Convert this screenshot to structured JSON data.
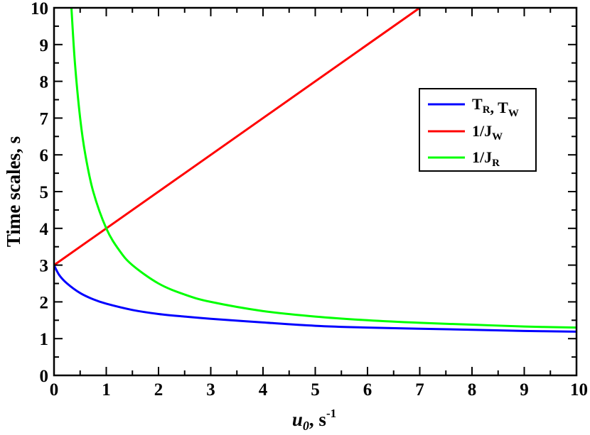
{
  "chart_data": {
    "type": "line",
    "xlabel": {
      "main": "u",
      "sub": "0",
      "suffix": ", s",
      "sup": "-1"
    },
    "ylabel": "Time scales, s",
    "xlim": [
      0,
      10
    ],
    "ylim": [
      0,
      10
    ],
    "x_ticks": [
      "0",
      "1",
      "2",
      "3",
      "4",
      "5",
      "6",
      "7",
      "8",
      "9",
      "10"
    ],
    "y_ticks": [
      "0",
      "1",
      "2",
      "3",
      "4",
      "5",
      "6",
      "7",
      "8",
      "9",
      "10"
    ],
    "grid": false,
    "legend_position": "upper-right",
    "series": [
      {
        "key": "tr-tw",
        "name": "T_R, T_W",
        "legend": [
          {
            "main": "T",
            "sub": "R"
          },
          {
            "main": ", T",
            "sub": "W"
          }
        ],
        "color": "#0000ff",
        "x": [
          0,
          0.1,
          0.25,
          0.5,
          0.75,
          1,
          1.5,
          2,
          2.5,
          3,
          4,
          5,
          6,
          7,
          8,
          9,
          10
        ],
        "y": [
          3.0,
          2.73,
          2.5,
          2.24,
          2.07,
          1.95,
          1.78,
          1.67,
          1.6,
          1.54,
          1.44,
          1.35,
          1.3,
          1.27,
          1.24,
          1.21,
          1.19
        ]
      },
      {
        "key": "inv-jw",
        "name": "1/J_W",
        "legend": [
          {
            "main": "1/J",
            "sub": "W"
          }
        ],
        "color": "#ff0000",
        "x": [
          0,
          7
        ],
        "y": [
          3,
          10
        ]
      },
      {
        "key": "inv-jr",
        "name": "1/J_R",
        "legend": [
          {
            "main": "1/J",
            "sub": "R"
          }
        ],
        "color": "#00ff00",
        "x": [
          0.333,
          0.4,
          0.5,
          0.6,
          0.75,
          1,
          1.25,
          1.5,
          2,
          2.5,
          3,
          4,
          5,
          6,
          7,
          8,
          9,
          10
        ],
        "y": [
          10.0,
          8.5,
          7.0,
          6.0,
          5.0,
          4.0,
          3.4,
          3.0,
          2.5,
          2.2,
          2.0,
          1.75,
          1.6,
          1.5,
          1.43,
          1.38,
          1.33,
          1.3
        ]
      }
    ]
  }
}
